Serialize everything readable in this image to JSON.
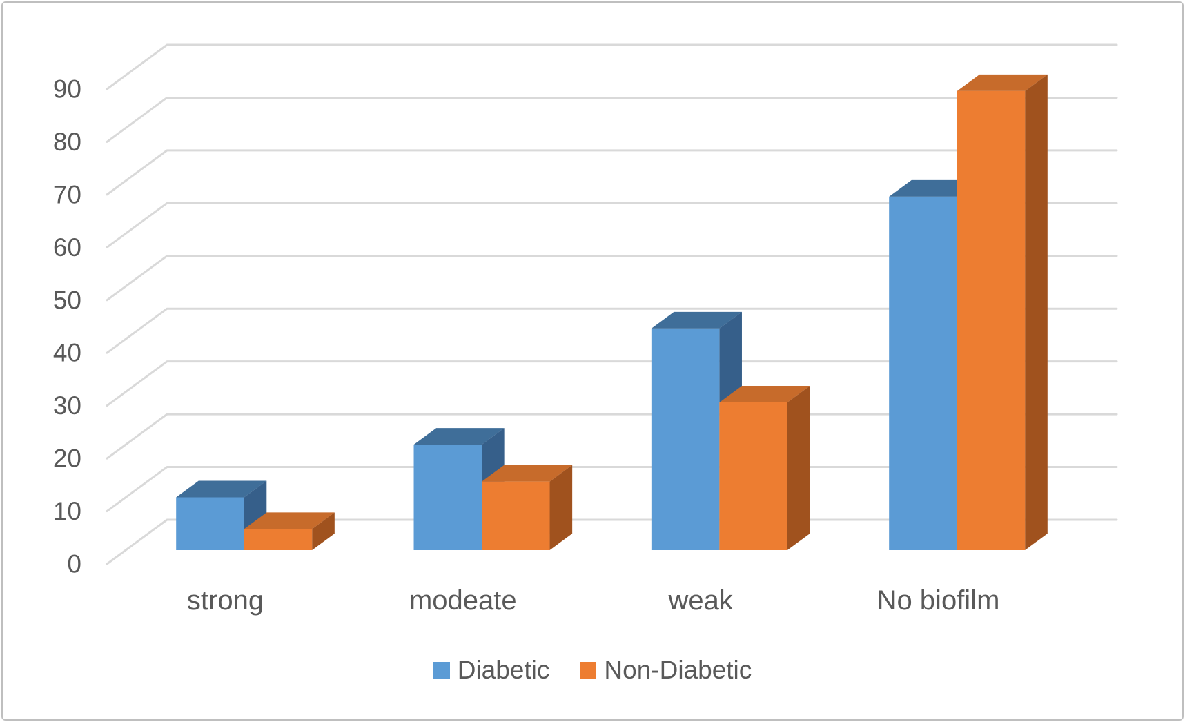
{
  "window": {
    "background": "#ffffff",
    "border_color": "#bfbfbf"
  },
  "chart_data": {
    "type": "bar",
    "style": "3d-clustered-column",
    "title": "",
    "xlabel": "",
    "ylabel": "",
    "categories": [
      "strong",
      "modeate",
      "weak",
      "No biofilm"
    ],
    "series": [
      {
        "name": "Diabetic",
        "values": [
          10,
          20,
          42,
          67
        ],
        "color": "#5B9BD5",
        "color_top": "#3F6E99",
        "color_side": "#365F8A"
      },
      {
        "name": "Non-Diabetic",
        "values": [
          4,
          13,
          28,
          87
        ],
        "color": "#ED7D31",
        "color_top": "#C76B2B",
        "color_side": "#A0521E"
      }
    ],
    "ylim": [
      0,
      90
    ],
    "y_ticks": [
      0,
      10,
      20,
      30,
      40,
      50,
      60,
      70,
      80,
      90
    ],
    "grid": true,
    "gridline_color": "#D9D9D9",
    "axis_text_color": "#595959",
    "legend_position": "bottom"
  }
}
